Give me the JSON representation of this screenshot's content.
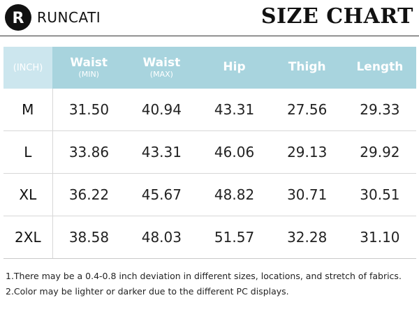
{
  "brand": {
    "name": "RUNCATI",
    "logo_letter": "R"
  },
  "title": "SIZE CHART",
  "colors": {
    "header_bg": "#a8d4de",
    "unit_header_bg": "#cce6ee",
    "header_text": "#ffffff"
  },
  "table": {
    "unit_label": "(INCH)",
    "columns": [
      {
        "label": "Waist",
        "sub": "(MIN)"
      },
      {
        "label": "Waist",
        "sub": "(MAX)"
      },
      {
        "label": "Hip",
        "sub": ""
      },
      {
        "label": "Thigh",
        "sub": ""
      },
      {
        "label": "Length",
        "sub": ""
      }
    ],
    "rows": [
      {
        "size": "M",
        "values": [
          "31.50",
          "40.94",
          "43.31",
          "27.56",
          "29.33"
        ]
      },
      {
        "size": "L",
        "values": [
          "33.86",
          "43.31",
          "46.06",
          "29.13",
          "29.92"
        ]
      },
      {
        "size": "XL",
        "values": [
          "36.22",
          "45.67",
          "48.82",
          "30.71",
          "30.51"
        ]
      },
      {
        "size": "2XL",
        "values": [
          "38.58",
          "48.03",
          "51.57",
          "32.28",
          "31.10"
        ]
      }
    ]
  },
  "notes": [
    "1.There may be a 0.4-0.8 inch deviation in different sizes, locations, and stretch of fabrics.",
    "2.Color may be lighter or darker due to the different PC displays."
  ]
}
